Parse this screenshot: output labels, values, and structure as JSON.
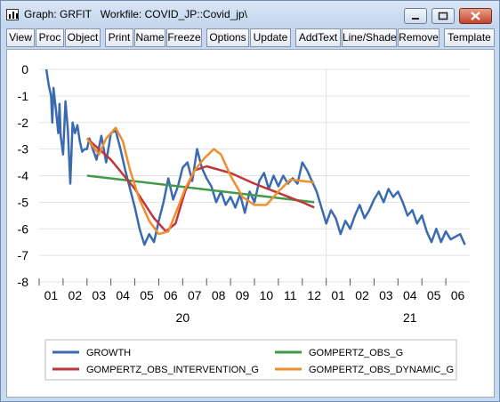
{
  "window": {
    "title": "Graph: GRFIT   Workfile: COVID_JP::Covid_jp\\"
  },
  "icons": [
    "graph-app-icon",
    "minimize-icon",
    "maximize-icon",
    "close-icon"
  ],
  "toolbar": [
    {
      "label": "View"
    },
    {
      "label": "Proc"
    },
    {
      "label": "Object"
    },
    {
      "label": "Print"
    },
    {
      "label": "Name"
    },
    {
      "label": "Freeze"
    },
    {
      "label": "Options"
    },
    {
      "label": "Update"
    },
    {
      "label": "AddText"
    },
    {
      "label": "Line/Shade"
    },
    {
      "label": "Remove"
    },
    {
      "label": "Template"
    }
  ],
  "chart_data": {
    "type": "line",
    "title": "",
    "xlabel": "",
    "ylabel": "",
    "ylim": [
      -8,
      0
    ],
    "yticks": [
      "0",
      "-1",
      "-2",
      "-3",
      "-4",
      "-5",
      "-6",
      "-7",
      "-8"
    ],
    "xlim": [
      0,
      18
    ],
    "xticks": [
      "01",
      "02",
      "03",
      "04",
      "05",
      "06",
      "07",
      "08",
      "09",
      "10",
      "11",
      "12",
      "01",
      "02",
      "03",
      "04",
      "05",
      "06"
    ],
    "year_labels": [
      {
        "label": "20",
        "x": 6.0
      },
      {
        "label": "21",
        "x": 15.5
      }
    ],
    "year_divider_x": 12.0,
    "grid": true,
    "legend_position": "bottom",
    "series": [
      {
        "name": "GROWTH",
        "color": "#3a6ab0",
        "x": [
          0.3,
          0.4,
          0.5,
          0.55,
          0.6,
          0.7,
          0.8,
          0.85,
          0.9,
          1.0,
          1.1,
          1.2,
          1.3,
          1.4,
          1.5,
          1.6,
          1.7,
          1.8,
          1.9,
          2.0,
          2.1,
          2.2,
          2.4,
          2.6,
          2.8,
          3.0,
          3.2,
          3.4,
          3.6,
          3.8,
          4.0,
          4.2,
          4.4,
          4.6,
          4.8,
          5.0,
          5.2,
          5.4,
          5.6,
          5.8,
          6.0,
          6.2,
          6.4,
          6.6,
          6.8,
          7.0,
          7.2,
          7.4,
          7.6,
          7.8,
          8.0,
          8.2,
          8.4,
          8.6,
          8.8,
          9.0,
          9.2,
          9.4,
          9.6,
          9.8,
          10.0,
          10.2,
          10.4,
          10.6,
          10.8,
          11.0,
          11.2,
          11.4,
          11.6,
          11.8,
          12.0,
          12.2,
          12.4,
          12.6,
          12.8,
          13.0,
          13.2,
          13.4,
          13.6,
          13.8,
          14.0,
          14.2,
          14.4,
          14.6,
          14.8,
          15.0,
          15.2,
          15.4,
          15.6,
          15.8,
          16.0,
          16.2,
          16.4,
          16.6,
          16.8,
          17.0,
          17.2,
          17.4,
          17.6,
          17.8
        ],
        "values": [
          0.0,
          -0.6,
          -1.0,
          -2.0,
          -0.7,
          -1.5,
          -2.4,
          -1.3,
          -2.5,
          -3.2,
          -1.2,
          -2.3,
          -4.3,
          -2.0,
          -2.4,
          -2.1,
          -2.7,
          -3.1,
          -3.0,
          -3.0,
          -2.6,
          -2.9,
          -3.4,
          -2.5,
          -3.5,
          -2.4,
          -2.3,
          -3.0,
          -3.8,
          -4.5,
          -5.2,
          -6.0,
          -6.6,
          -6.2,
          -6.5,
          -5.7,
          -5.0,
          -4.1,
          -4.9,
          -4.4,
          -3.7,
          -3.5,
          -4.2,
          -3.0,
          -3.7,
          -4.1,
          -4.4,
          -5.0,
          -4.6,
          -5.1,
          -4.8,
          -5.2,
          -4.7,
          -5.4,
          -4.6,
          -5.0,
          -4.2,
          -3.9,
          -4.5,
          -4.0,
          -4.4,
          -4.0,
          -4.3,
          -4.1,
          -4.3,
          -3.5,
          -3.8,
          -4.2,
          -4.6,
          -5.2,
          -5.8,
          -5.3,
          -5.6,
          -6.2,
          -5.7,
          -6.0,
          -5.5,
          -5.1,
          -5.6,
          -5.3,
          -4.9,
          -4.6,
          -5.0,
          -4.5,
          -4.8,
          -4.6,
          -5.0,
          -5.5,
          -5.3,
          -5.8,
          -5.5,
          -6.1,
          -6.5,
          -6.0,
          -6.5,
          -6.1,
          -6.4,
          -6.3,
          -6.2,
          -6.6
        ]
      },
      {
        "name": "GOMPERTZ_OBS_G",
        "color": "#3f9a4a",
        "x": [
          2.0,
          11.5
        ],
        "values": [
          -4.0,
          -5.0
        ]
      },
      {
        "name": "GOMPERTZ_OBS_INTERVENTION_G",
        "color": "#c0353b",
        "x": [
          2.0,
          3.0,
          4.0,
          4.8,
          5.3,
          5.7,
          6.1,
          6.5,
          7.0,
          8.0,
          9.0,
          10.0,
          11.0,
          11.5
        ],
        "values": [
          -2.6,
          -3.4,
          -4.5,
          -5.6,
          -6.1,
          -5.8,
          -4.6,
          -3.8,
          -3.65,
          -3.9,
          -4.3,
          -4.65,
          -5.0,
          -5.2
        ]
      },
      {
        "name": "GOMPERTZ_OBS_DYNAMIC_G",
        "color": "#ee8e2e",
        "x": [
          2.0,
          2.5,
          2.8,
          3.2,
          3.5,
          3.8,
          4.2,
          4.6,
          5.0,
          5.4,
          5.8,
          6.1,
          6.5,
          6.9,
          7.3,
          7.6,
          8.0,
          8.5,
          9.0,
          9.5,
          10.0,
          10.5,
          11.0,
          11.5
        ],
        "values": [
          -2.6,
          -3.2,
          -2.6,
          -2.2,
          -2.7,
          -3.8,
          -4.9,
          -5.7,
          -6.2,
          -6.1,
          -5.2,
          -4.5,
          -3.8,
          -3.35,
          -3.0,
          -3.2,
          -4.0,
          -4.8,
          -5.1,
          -5.1,
          -4.6,
          -4.15,
          -4.2,
          -4.25
        ]
      }
    ]
  }
}
